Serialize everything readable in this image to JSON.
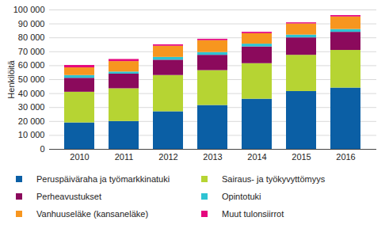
{
  "chart_data": {
    "type": "bar",
    "stacked": true,
    "ylabel": "Henkilöitä",
    "categories": [
      "2010",
      "2011",
      "2012",
      "2013",
      "2014",
      "2015",
      "2016"
    ],
    "series": [
      {
        "name": "Peruspäiväraha ja työmarkkinatuki",
        "color": "#0b5fa5",
        "values": [
          19000,
          20000,
          27000,
          31500,
          36000,
          41500,
          44000
        ]
      },
      {
        "name": "Sairaus- ja työkyvyttömyys",
        "color": "#b6d433",
        "values": [
          22000,
          23500,
          26000,
          25000,
          25500,
          26000,
          27000
        ]
      },
      {
        "name": "Perheavustukset",
        "color": "#8b0a5c",
        "values": [
          10000,
          10500,
          11000,
          11000,
          12000,
          12500,
          13000
        ]
      },
      {
        "name": "Opintotuki",
        "color": "#2ec3d3",
        "values": [
          2000,
          1500,
          2000,
          2000,
          2000,
          2000,
          2000
        ]
      },
      {
        "name": "Vanhuuseläke (kansaneläke)",
        "color": "#f7961f",
        "values": [
          5500,
          7500,
          8000,
          8500,
          7500,
          8000,
          9000
        ]
      },
      {
        "name": "Muut tulonsiirrot",
        "color": "#e5077e",
        "values": [
          1700,
          1500,
          1000,
          1000,
          1000,
          800,
          1000
        ]
      }
    ],
    "ylim": [
      0,
      100000
    ],
    "yticks": [
      0,
      {
        "value": 10000,
        "label": "10 000"
      },
      {
        "value": 20000,
        "label": "20 000"
      },
      {
        "value": 30000,
        "label": "30 000"
      },
      {
        "value": 40000,
        "label": "40 000"
      },
      {
        "value": 50000,
        "label": "50 000"
      },
      {
        "value": 60000,
        "label": "60 000"
      },
      {
        "value": 70000,
        "label": "70 000"
      },
      {
        "value": 80000,
        "label": "80 000"
      },
      {
        "value": 90000,
        "label": "90 000"
      },
      {
        "value": 100000,
        "label": "100 000"
      }
    ],
    "grid": true,
    "legend": "bottom"
  }
}
